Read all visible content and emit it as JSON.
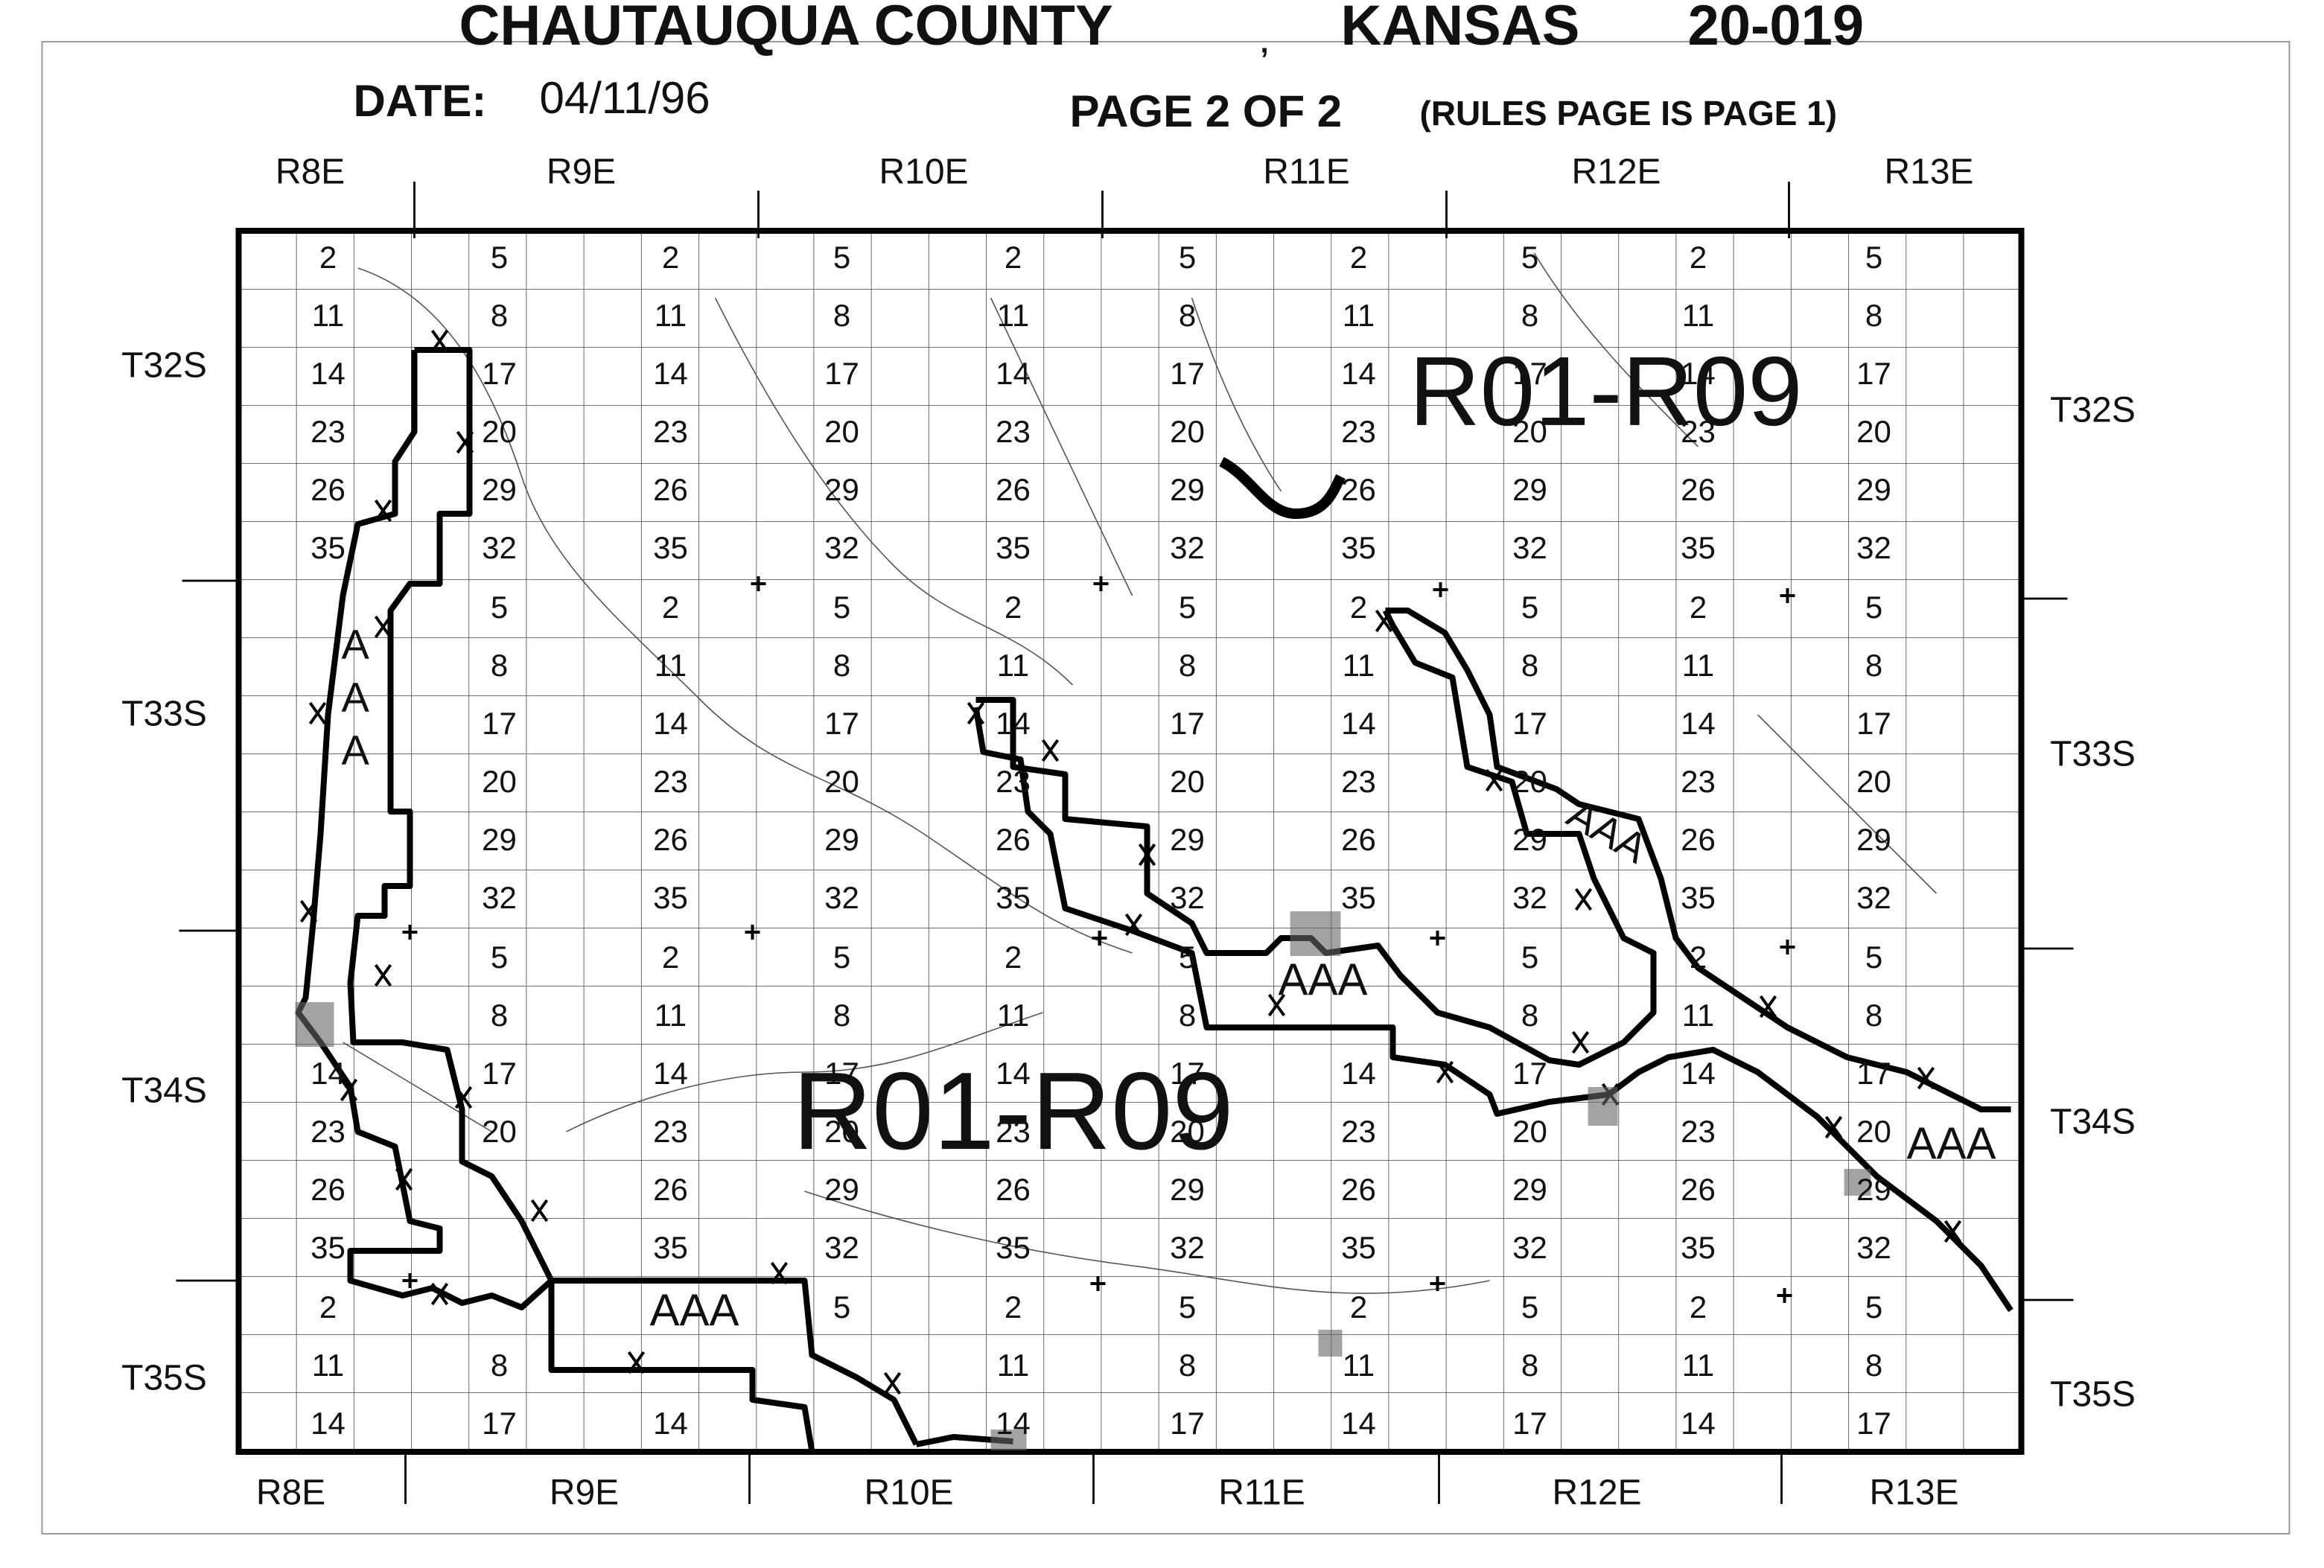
{
  "header": {
    "county": "CHAUTAUQUA COUNTY",
    "separator": ",",
    "state": "KANSAS",
    "code": "20-019",
    "date_label": "DATE:",
    "date": "04/11/96",
    "page": "PAGE 2 OF 2",
    "page_note": "(RULES PAGE IS PAGE 1)"
  },
  "ranges_top": [
    "R8E",
    "R9E",
    "R10E",
    "R11E",
    "R12E",
    "R13E"
  ],
  "ranges_bottom": [
    "R8E",
    "R9E",
    "R10E",
    "R11E",
    "R12E",
    "R13E"
  ],
  "townships_left": [
    "T32S",
    "T33S",
    "T34S",
    "T35S"
  ],
  "townships_right": [
    "T32S",
    "T33S",
    "T34S",
    "T35S"
  ],
  "zones": [
    {
      "label": "R01-R09"
    },
    {
      "label": "R01-R09"
    },
    {
      "label": "AAA"
    },
    {
      "label": "AAA"
    },
    {
      "label": "AAA"
    },
    {
      "label": "AAA"
    },
    {
      "label": "AAA"
    }
  ],
  "section_columns": [
    [
      2,
      11,
      14,
      23,
      26,
      35,
      null,
      null,
      null,
      null,
      null,
      null,
      null,
      null,
      14,
      23,
      26,
      35,
      2,
      11,
      14
    ],
    [
      5,
      8,
      17,
      20,
      29,
      32,
      5,
      8,
      17,
      20,
      29,
      32,
      5,
      8,
      17,
      20,
      null,
      null,
      null,
      8,
      17
    ],
    [
      2,
      11,
      14,
      23,
      26,
      35,
      2,
      11,
      14,
      23,
      26,
      35,
      2,
      11,
      14,
      23,
      26,
      35,
      null,
      null,
      14
    ],
    [
      5,
      8,
      17,
      20,
      29,
      32,
      5,
      8,
      17,
      20,
      29,
      32,
      5,
      8,
      17,
      20,
      29,
      32,
      5,
      null,
      null
    ],
    [
      2,
      11,
      14,
      23,
      26,
      35,
      2,
      11,
      14,
      23,
      26,
      35,
      2,
      11,
      14,
      23,
      26,
      35,
      2,
      11,
      14
    ],
    [
      5,
      8,
      17,
      20,
      29,
      32,
      5,
      8,
      17,
      20,
      29,
      32,
      5,
      8,
      17,
      20,
      29,
      32,
      5,
      8,
      17
    ],
    [
      2,
      11,
      14,
      23,
      26,
      35,
      2,
      11,
      14,
      23,
      26,
      35,
      null,
      null,
      14,
      23,
      26,
      35,
      2,
      11,
      14
    ],
    [
      5,
      8,
      17,
      20,
      29,
      32,
      5,
      8,
      17,
      20,
      29,
      32,
      5,
      8,
      17,
      20,
      29,
      32,
      5,
      8,
      17
    ],
    [
      2,
      11,
      14,
      23,
      26,
      35,
      2,
      11,
      14,
      23,
      26,
      35,
      2,
      11,
      14,
      23,
      26,
      35,
      2,
      11,
      14
    ],
    [
      5,
      8,
      17,
      20,
      29,
      32,
      5,
      8,
      17,
      20,
      29,
      32,
      5,
      8,
      17,
      20,
      29,
      32,
      5,
      8,
      17
    ]
  ]
}
